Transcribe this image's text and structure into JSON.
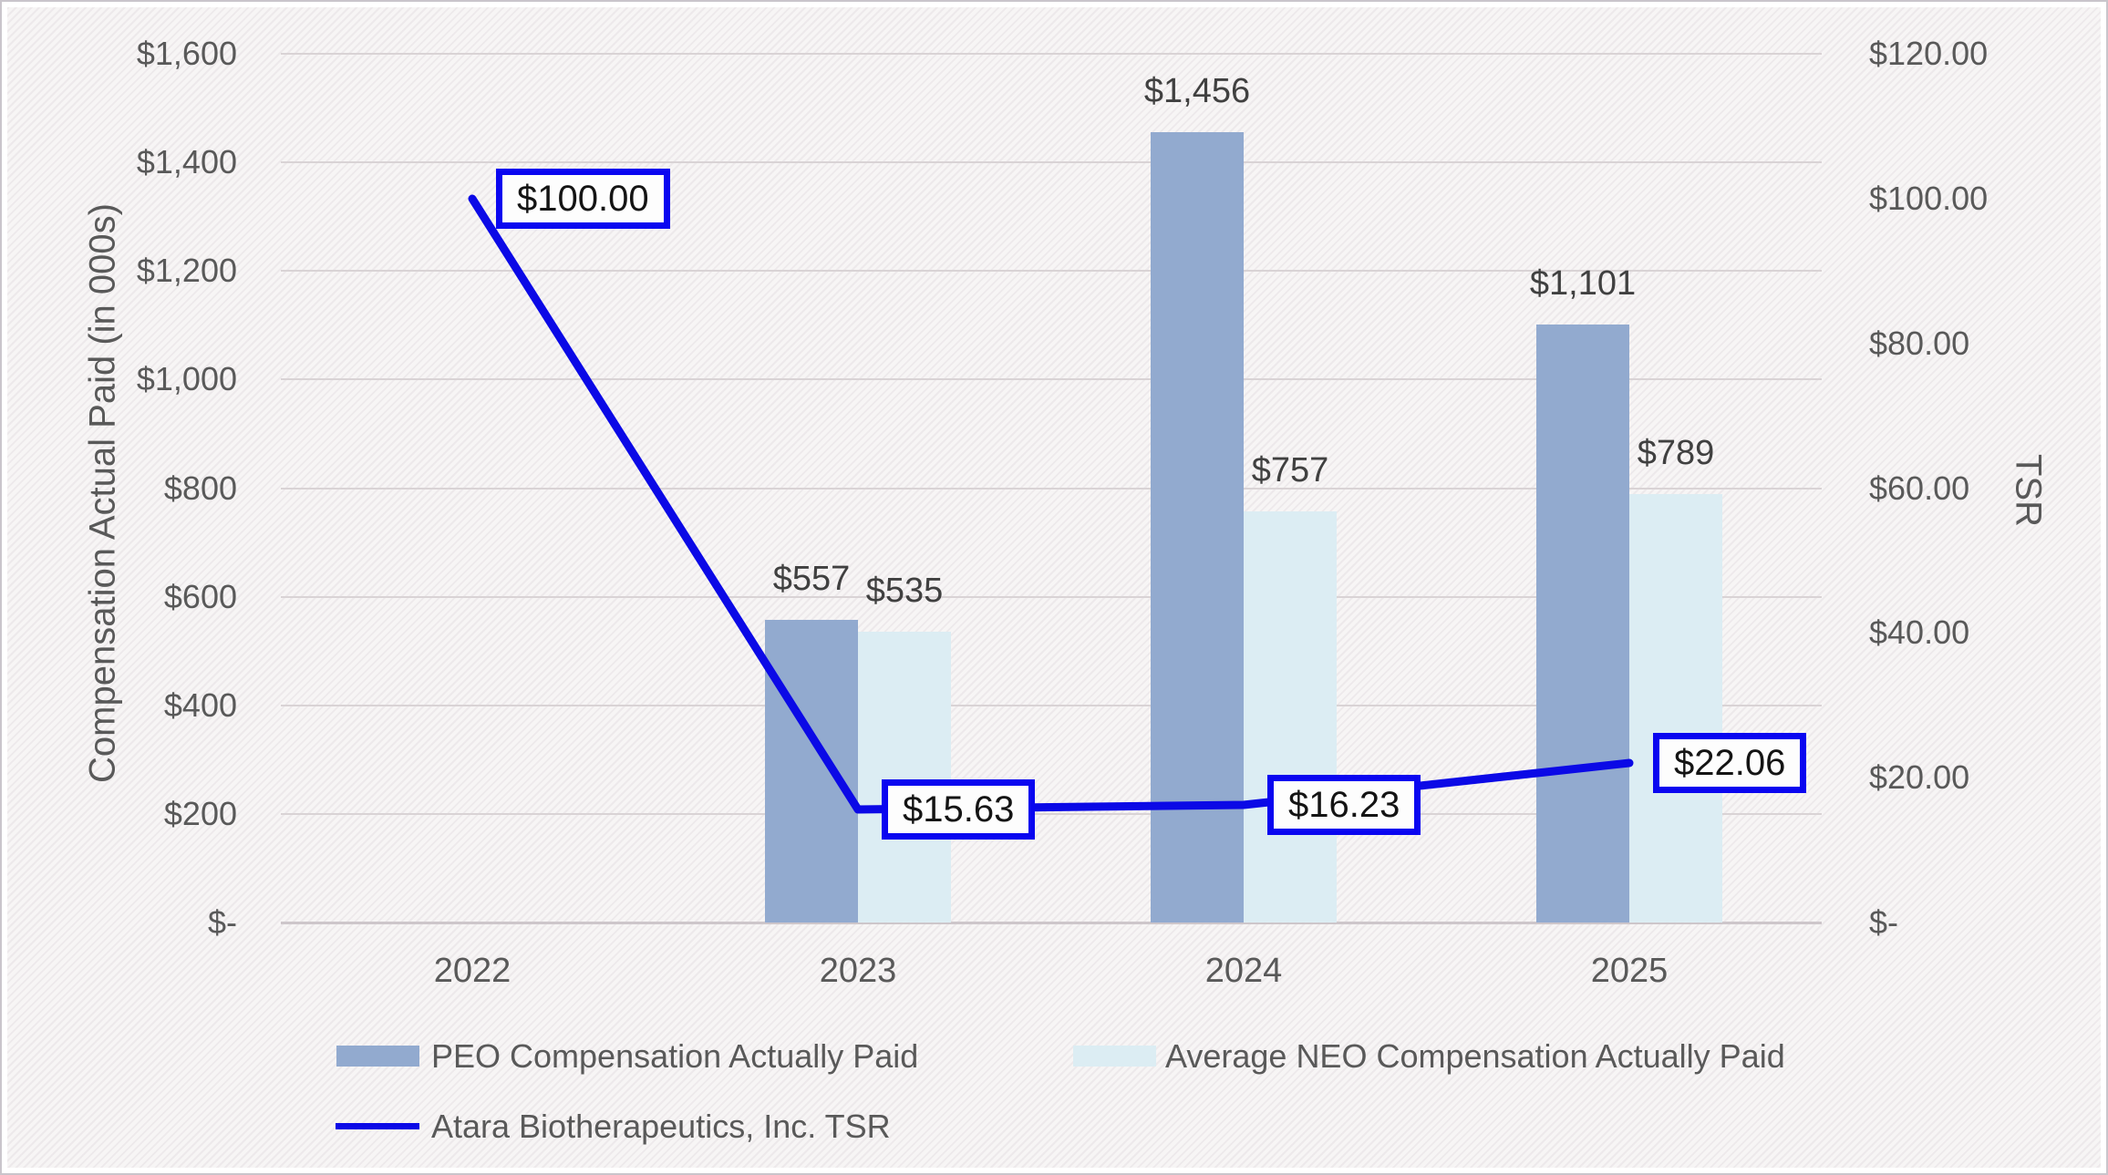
{
  "chart_data": {
    "type": "bar+line combo",
    "categories": [
      "2022",
      "2023",
      "2024",
      "2025"
    ],
    "series": [
      {
        "name": "PEO Compensation Actually Paid",
        "type": "bar",
        "axis": "left",
        "color": "#92aacf",
        "values": [
          null,
          557,
          1456,
          1101
        ],
        "data_labels": [
          null,
          "$557",
          "$1,456",
          "$1,101"
        ]
      },
      {
        "name": "Average NEO Compensation Actually Paid",
        "type": "bar",
        "axis": "left",
        "color": "#dcedf3",
        "values": [
          null,
          535,
          757,
          789
        ],
        "data_labels": [
          null,
          "$535",
          "$757",
          "$789"
        ]
      },
      {
        "name": "Atara Biotherapeutics, Inc. TSR",
        "type": "line",
        "axis": "right",
        "color": "#0b09e6",
        "values": [
          100.0,
          15.63,
          16.23,
          22.06
        ],
        "data_labels": [
          "$100.00",
          "$15.63",
          "$16.23",
          "$22.06"
        ]
      }
    ],
    "left_axis": {
      "title": "Compensation Actual Paid (in 000s)",
      "range": [
        0,
        1600
      ],
      "tick_step": 200,
      "tick_labels": [
        "$1,600",
        "$1,400",
        "$1,200",
        "$1,000",
        "$800",
        "$600",
        "$400",
        "$200",
        "$-"
      ]
    },
    "right_axis": {
      "title": "TSR",
      "range": [
        0,
        120
      ],
      "tick_step": 20,
      "tick_labels": [
        "$120.00",
        "$100.00",
        "$80.00",
        "$60.00",
        "$40.00",
        "$20.00",
        "$-"
      ]
    },
    "grid": "horizontal gridlines on",
    "legend_position": "bottom-left, two rows",
    "colors": {
      "grid": "#d9d3d5",
      "axis_text": "#595959",
      "bar_label_text": "#404040",
      "tsr_box_border": "#0a06f0",
      "background": "#f7f5f5"
    }
  }
}
